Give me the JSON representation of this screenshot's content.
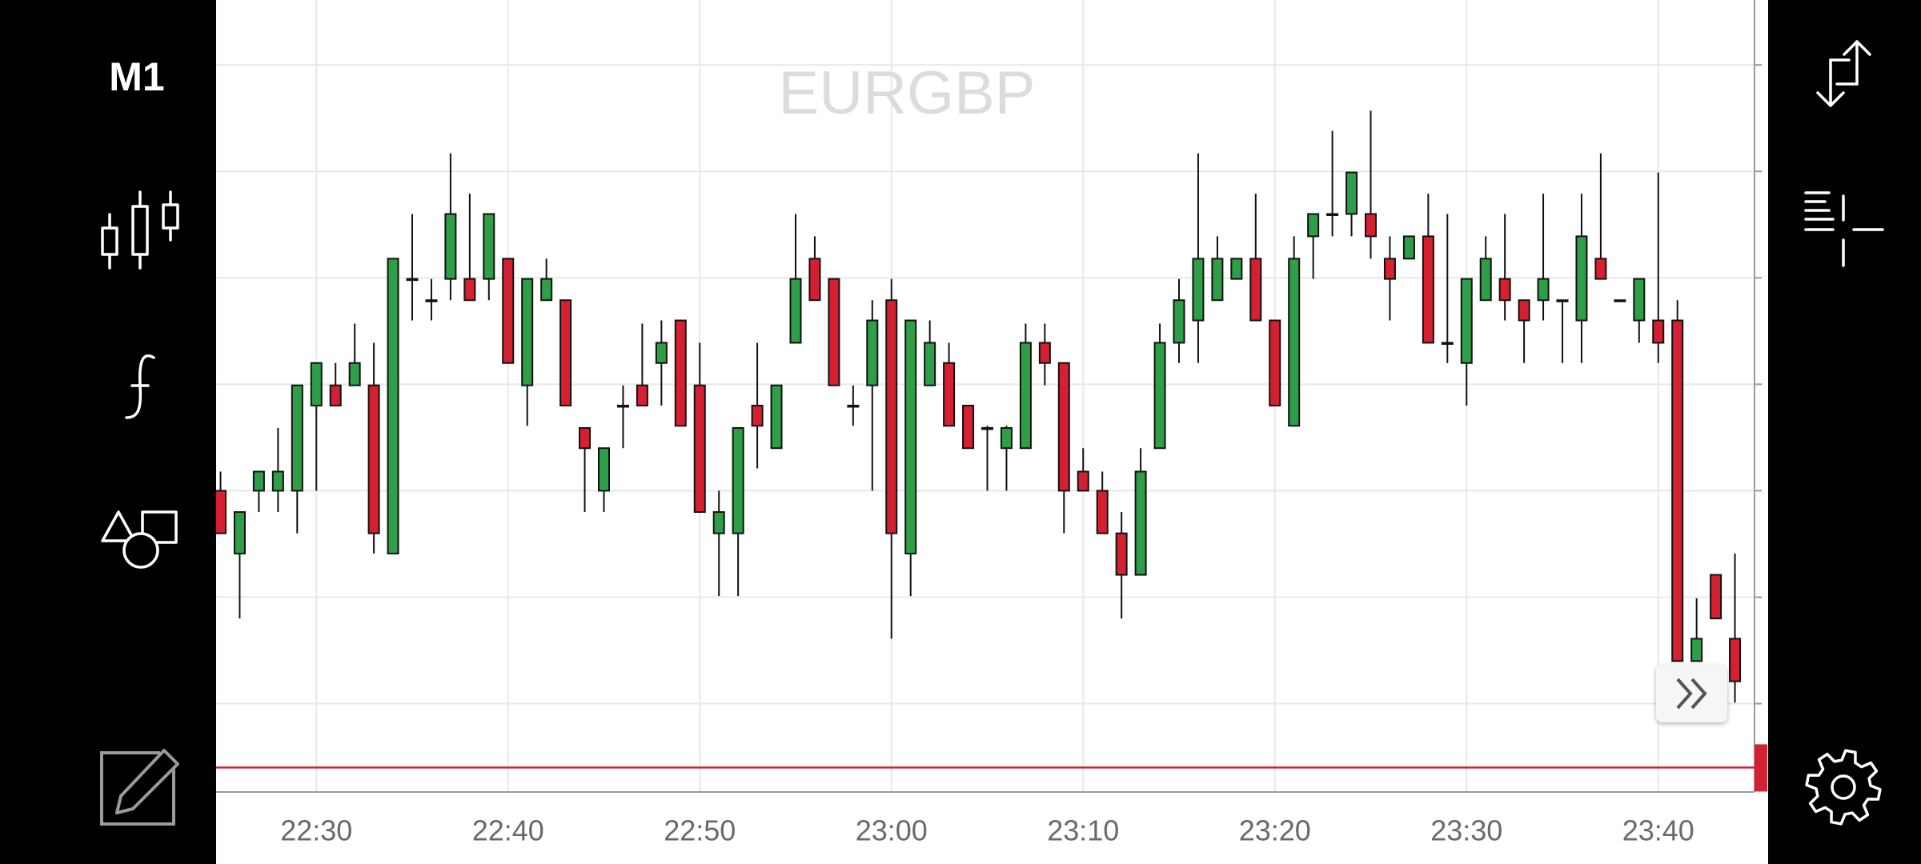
{
  "sidebar": {
    "timeframe": "M1"
  },
  "chart_data": {
    "type": "candlestick",
    "title": "EURGBP",
    "categories": [
      null,
      null,
      null,
      null,
      null,
      "22:30",
      null,
      null,
      null,
      null,
      null,
      null,
      null,
      null,
      null,
      "22:40",
      null,
      null,
      null,
      null,
      null,
      null,
      null,
      null,
      null,
      "22:50",
      null,
      null,
      null,
      null,
      null,
      null,
      null,
      null,
      null,
      "23:00",
      null,
      null,
      null,
      null,
      null,
      null,
      null,
      null,
      null,
      "23:10",
      null,
      null,
      null,
      null,
      null,
      null,
      null,
      null,
      null,
      "23:20",
      null,
      null,
      null,
      null,
      null,
      null,
      null,
      null,
      null,
      "23:30",
      null,
      null,
      null,
      null,
      null,
      null,
      null,
      null,
      null,
      "23:40",
      null,
      null,
      null,
      null
    ],
    "open": [
      30.0,
      24.1,
      30.0,
      30.0,
      30.0,
      38.0,
      39.9,
      39.9,
      39.9,
      24.1,
      49.9,
      47.9,
      49.9,
      49.9,
      49.9,
      51.8,
      39.9,
      47.9,
      47.9,
      35.9,
      30.0,
      38.0,
      39.9,
      42.0,
      46.0,
      39.9,
      26.0,
      26.0,
      38.0,
      34.0,
      43.9,
      51.8,
      49.9,
      38.0,
      39.9,
      47.9,
      24.1,
      39.9,
      42.0,
      38.0,
      35.9,
      34.0,
      34.0,
      43.9,
      42.0,
      31.8,
      30.0,
      26.0,
      22.1,
      34.0,
      43.9,
      46.0,
      47.9,
      49.9,
      51.8,
      46.0,
      36.1,
      53.9,
      56.0,
      56.0,
      56.0,
      51.8,
      51.8,
      53.9,
      43.9,
      42.0,
      47.9,
      49.9,
      47.9,
      47.9,
      47.9,
      46.0,
      51.8,
      47.9,
      46.0,
      46.0,
      46.0,
      14.0,
      22.1,
      16.1
    ],
    "high": [
      31.8,
      28.0,
      31.8,
      35.9,
      39.9,
      42.0,
      42.0,
      45.7,
      43.9,
      51.8,
      56.0,
      49.9,
      61.7,
      57.9,
      56.0,
      51.8,
      49.9,
      51.8,
      47.9,
      35.9,
      34.0,
      39.9,
      45.7,
      46.0,
      46.0,
      43.9,
      30.0,
      35.9,
      43.9,
      39.9,
      56.0,
      53.9,
      49.9,
      39.9,
      47.9,
      49.9,
      46.0,
      46.0,
      43.9,
      38.0,
      36.1,
      36.1,
      45.7,
      45.7,
      42.0,
      34.0,
      31.8,
      28.0,
      34.0,
      45.7,
      49.9,
      61.7,
      53.9,
      51.8,
      57.9,
      46.0,
      53.9,
      56.0,
      63.8,
      59.9,
      65.7,
      53.9,
      53.9,
      57.9,
      56.0,
      49.9,
      53.9,
      56.0,
      47.9,
      57.9,
      47.9,
      57.9,
      61.7,
      47.9,
      49.9,
      59.9,
      47.9,
      19.9,
      22.1,
      24.1
    ],
    "low": [
      26.0,
      18.0,
      28.0,
      28.0,
      26.0,
      30.0,
      38.0,
      39.9,
      24.1,
      24.1,
      46.0,
      46.0,
      47.9,
      47.9,
      47.9,
      42.0,
      36.1,
      47.9,
      38.0,
      28.0,
      28.0,
      34.0,
      38.0,
      38.0,
      36.1,
      28.0,
      20.1,
      20.1,
      32.1,
      34.0,
      43.9,
      47.9,
      39.9,
      36.1,
      30.0,
      16.1,
      20.1,
      39.9,
      36.1,
      34.0,
      30.0,
      30.0,
      34.0,
      39.9,
      26.0,
      30.0,
      26.0,
      18.0,
      22.1,
      34.0,
      42.0,
      42.0,
      47.9,
      49.9,
      46.0,
      38.0,
      36.1,
      49.9,
      53.9,
      53.9,
      51.8,
      46.0,
      51.8,
      43.9,
      42.0,
      38.0,
      47.9,
      46.0,
      42.0,
      46.0,
      42.0,
      42.0,
      49.9,
      47.9,
      43.9,
      42.0,
      14.0,
      14.0,
      18.0,
      10.1
    ],
    "close": [
      26.0,
      28.0,
      31.8,
      31.8,
      39.9,
      42.0,
      38.0,
      42.0,
      26.0,
      51.8,
      49.9,
      47.9,
      56.0,
      47.9,
      56.0,
      42.0,
      49.9,
      49.9,
      38.0,
      34.0,
      34.0,
      38.0,
      38.0,
      43.9,
      36.1,
      28.0,
      28.0,
      35.9,
      36.1,
      39.9,
      49.9,
      47.9,
      39.9,
      38.0,
      46.0,
      26.0,
      46.0,
      43.9,
      36.1,
      34.0,
      35.9,
      35.9,
      43.9,
      42.0,
      30.0,
      30.0,
      26.0,
      22.1,
      31.8,
      43.9,
      47.9,
      51.8,
      51.8,
      51.8,
      46.0,
      38.0,
      51.8,
      56.0,
      56.0,
      59.9,
      53.9,
      49.9,
      53.9,
      43.9,
      43.9,
      49.9,
      51.8,
      47.9,
      46.0,
      49.9,
      47.9,
      53.9,
      49.9,
      47.9,
      49.9,
      43.9,
      14.0,
      16.1,
      18.0,
      12.1
    ],
    "up_color": "#2e9e47",
    "down_color": "#d42030",
    "price_line": 4.0,
    "price_line_color": "#d42030",
    "ylim": [
      1.7,
      76.1
    ],
    "yticks": [
      10,
      20,
      30,
      40,
      50,
      60,
      70
    ],
    "grid": true
  }
}
